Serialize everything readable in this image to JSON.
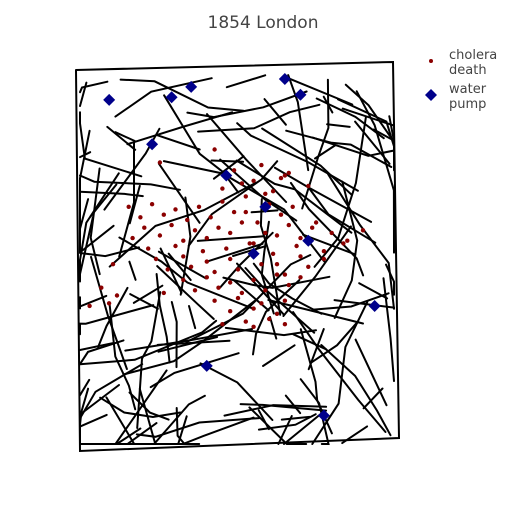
{
  "chart_data": {
    "type": "scatter",
    "title": "1854 London",
    "xlabel": "",
    "ylabel": "",
    "axes_visible": false,
    "grid": false,
    "legend_position": "top-right",
    "background": "#ffffff",
    "street_color": "#000000",
    "series": [
      {
        "name": "cholera death",
        "marker": "circle",
        "color": "#8b0000",
        "x": [
          8.6,
          9.2,
          9.8,
          10.4,
          11.0,
          11.6,
          12.2,
          12.8,
          8.9,
          9.5,
          10.1,
          10.7,
          11.3,
          11.9,
          12.5,
          9.0,
          9.7,
          10.3,
          10.9,
          11.5,
          12.1,
          12.7,
          13.3,
          8.7,
          9.4,
          10.0,
          10.6,
          11.2,
          11.8,
          12.4,
          13.0,
          9.1,
          9.8,
          10.5,
          11.1,
          11.7,
          12.3,
          12.9,
          9.3,
          10.0,
          10.6,
          11.2,
          11.8,
          12.4,
          13.0,
          13.6,
          9.6,
          10.2,
          10.8,
          11.4,
          12.0,
          12.6,
          13.2,
          10.0,
          10.6,
          11.2,
          11.8,
          12.4,
          13.0,
          10.3,
          10.9,
          11.5,
          12.1,
          12.7,
          10.8,
          11.4,
          12.0,
          12.6,
          11.2,
          11.8,
          12.4,
          11.6,
          12.2,
          13.4,
          13.8,
          14.1,
          13.6,
          14.2,
          14.6,
          7.9,
          8.3,
          7.6,
          8.1,
          9.5,
          11.0,
          11.8,
          12.6,
          11.5,
          12.5,
          13.2,
          11.3,
          12.0,
          12.7,
          9.4,
          10.8,
          8.2,
          11.0,
          12.1,
          11.8,
          12.6,
          11.6,
          12.3
        ],
        "y": [
          5.2,
          5.3,
          5.1,
          5.2,
          5.4,
          5.0,
          5.3,
          5.2,
          4.8,
          4.9,
          4.7,
          4.8,
          5.0,
          4.6,
          4.9,
          4.4,
          4.5,
          4.3,
          4.4,
          4.6,
          4.2,
          4.5,
          4.4,
          4.0,
          4.1,
          3.9,
          4.0,
          4.2,
          3.8,
          4.1,
          4.0,
          3.6,
          3.7,
          3.5,
          3.6,
          3.8,
          3.4,
          3.7,
          3.2,
          3.3,
          3.1,
          3.2,
          3.4,
          3.0,
          3.3,
          3.2,
          2.8,
          2.9,
          2.7,
          2.8,
          3.0,
          2.6,
          2.9,
          2.4,
          2.5,
          2.3,
          2.4,
          2.6,
          2.5,
          2.0,
          2.1,
          1.9,
          2.0,
          2.2,
          1.6,
          1.7,
          1.5,
          1.6,
          1.2,
          1.3,
          1.1,
          0.8,
          0.9,
          4.6,
          4.2,
          3.8,
          3.5,
          3.9,
          4.3,
          2.1,
          1.8,
          1.4,
          1.5,
          1.9,
          0.7,
          0.6,
          0.7,
          6.1,
          6.3,
          6.0,
          6.6,
          6.8,
          6.5,
          6.9,
          7.4,
          3.0,
          5.9,
          5.7,
          6.2,
          6.4,
          5.6,
          5.8
        ]
      },
      {
        "name": "water pump",
        "marker": "diamond",
        "color": "#00008b",
        "x": [
          9.2,
          11.1,
          8.1,
          12.6,
          14.9,
          12.1,
          10.6,
          13.2,
          11.8,
          13.6,
          10.2,
          9.7,
          13.0
        ],
        "y": [
          7.6,
          6.4,
          9.3,
          10.1,
          1.4,
          5.2,
          -0.9,
          3.9,
          3.4,
          -2.8,
          9.8,
          9.4,
          9.5
        ]
      }
    ]
  }
}
